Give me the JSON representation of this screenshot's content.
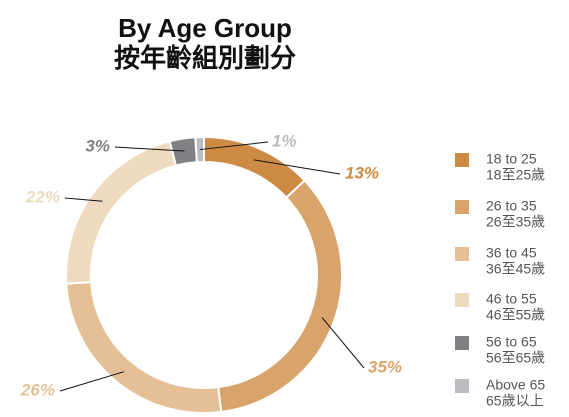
{
  "chart_data": {
    "type": "donut",
    "title": "By Age Group",
    "subtitle": "按年齡組別劃分",
    "categories": [
      "18 to 25",
      "26 to 35",
      "36 to 45",
      "46 to 55",
      "56 to 65",
      "Above 65"
    ],
    "categories_zh": [
      "18至25歲",
      "26至35歲",
      "36至45歲",
      "46至55歲",
      "56至65歲",
      "65歲以上"
    ],
    "values": [
      13,
      35,
      26,
      22,
      3,
      1
    ],
    "value_labels": [
      "13%",
      "35%",
      "26%",
      "22%",
      "3%",
      "1%"
    ],
    "colors": [
      "#cd8a43",
      "#d9a46c",
      "#e5c097",
      "#efd9bf",
      "#808085",
      "#bcbcc0"
    ]
  }
}
